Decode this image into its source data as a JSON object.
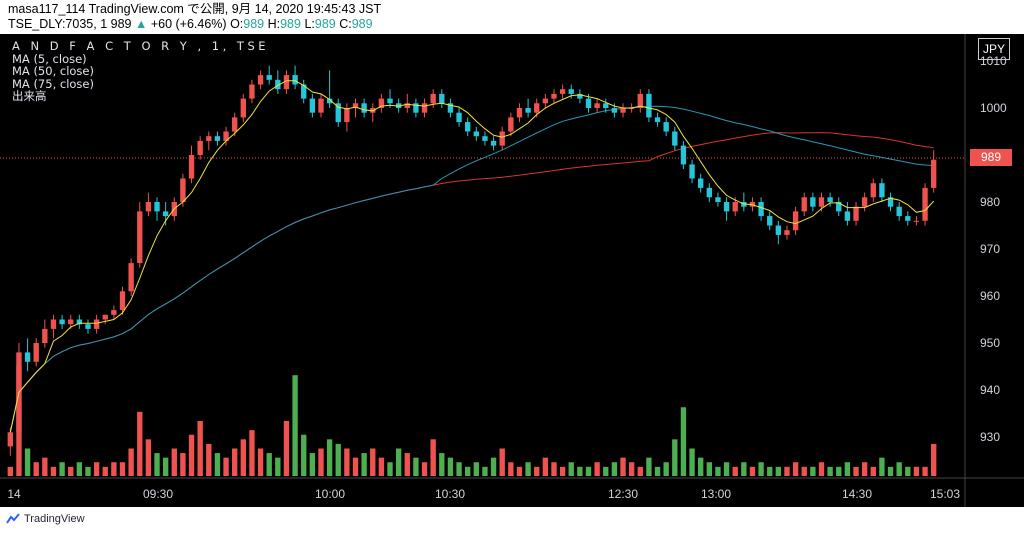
{
  "header": {
    "line1": "masa117_114 TradingView.com で公開, 9月 14, 2020 19:45:43 JST",
    "symbol": "TSE_DLY:7035, 1",
    "price": "989",
    "arrow": "▲",
    "change": "+60 (+6.46%)",
    "o_label": "O:",
    "o_value": "989",
    "h_label": "H:",
    "h_value": "989",
    "l_label": "L:",
    "l_value": "989",
    "c_label": "C:",
    "c_value": "989"
  },
  "legend": {
    "title": "A N D   F A C T O R Y , 1, TSE",
    "ma5": "MA (5, close)",
    "ma50": "MA (50, close)",
    "ma75": "MA (75, close)",
    "volume": "出来高"
  },
  "axis": {
    "unit": "JPY",
    "last_price_label": "989"
  },
  "footer": {
    "brand": "TradingView"
  },
  "colors": {
    "up": "#ef5350",
    "down": "#26c6da",
    "vol_up": "#ef5350",
    "vol_down": "#4caf50",
    "ma5": "#f2e33b",
    "ma50": "#2a97b8",
    "ma75": "#d9342b",
    "grid": "#1e1e1e",
    "axis_line": "#555"
  },
  "chart_data": {
    "type": "candlestick",
    "title": "A N D   F A C T O R Y , 1, TSE",
    "interval": "1 minute",
    "y_ticks": [
      930,
      940,
      950,
      960,
      970,
      980,
      990,
      1000,
      1010
    ],
    "ylim": [
      922,
      1012
    ],
    "x_ticks": [
      "14",
      "09:30",
      "10:00",
      "10:30",
      "12:30",
      "13:00",
      "14:30",
      "15:03"
    ],
    "grid": false,
    "last_price": 989,
    "price_ohlc": [
      [
        928,
        932,
        926,
        931
      ],
      [
        931,
        950,
        930,
        948
      ],
      [
        948,
        951,
        944,
        946
      ],
      [
        946,
        951,
        945,
        950
      ],
      [
        950,
        955,
        949,
        953
      ],
      [
        953,
        956,
        951,
        955
      ],
      [
        955,
        956,
        953,
        954
      ],
      [
        954,
        956,
        953,
        955
      ],
      [
        955,
        956,
        953,
        954
      ],
      [
        954,
        955,
        952,
        953
      ],
      [
        953,
        956,
        952,
        955
      ],
      [
        955,
        956,
        954,
        956
      ],
      [
        956,
        958,
        955,
        957
      ],
      [
        957,
        962,
        956,
        961
      ],
      [
        961,
        968,
        960,
        967
      ],
      [
        967,
        980,
        966,
        978
      ],
      [
        978,
        982,
        977,
        980
      ],
      [
        980,
        981,
        976,
        978
      ],
      [
        978,
        980,
        975,
        977
      ],
      [
        977,
        981,
        976,
        980
      ],
      [
        980,
        986,
        979,
        985
      ],
      [
        985,
        992,
        984,
        990
      ],
      [
        990,
        994,
        989,
        993
      ],
      [
        993,
        995,
        991,
        994
      ],
      [
        994,
        995,
        992,
        993
      ],
      [
        993,
        996,
        992,
        995
      ],
      [
        995,
        999,
        994,
        998
      ],
      [
        998,
        1003,
        997,
        1002
      ],
      [
        1002,
        1006,
        1001,
        1005
      ],
      [
        1005,
        1008,
        1004,
        1007
      ],
      [
        1007,
        1009,
        1005,
        1006
      ],
      [
        1006,
        1008,
        1003,
        1004
      ],
      [
        1004,
        1008,
        1003,
        1007
      ],
      [
        1007,
        1009,
        1004,
        1005
      ],
      [
        1005,
        1006,
        1001,
        1002
      ],
      [
        1002,
        1003,
        998,
        999
      ],
      [
        999,
        1003,
        998,
        1002
      ],
      [
        1002,
        1008,
        1000,
        1001
      ],
      [
        1001,
        1002,
        996,
        997
      ],
      [
        997,
        1001,
        995,
        1000
      ],
      [
        1000,
        1002,
        998,
        1001
      ],
      [
        1001,
        1002,
        998,
        999
      ],
      [
        999,
        1001,
        997,
        1000
      ],
      [
        1000,
        1003,
        999,
        1002
      ],
      [
        1002,
        1004,
        1000,
        1001
      ],
      [
        1001,
        1002,
        999,
        1000
      ],
      [
        1000,
        1003,
        999,
        1001
      ],
      [
        1001,
        1002,
        998,
        999
      ],
      [
        999,
        1002,
        998,
        1001
      ],
      [
        1001,
        1004,
        1000,
        1003
      ],
      [
        1003,
        1004,
        1000,
        1001
      ],
      [
        1001,
        1002,
        998,
        999
      ],
      [
        999,
        1000,
        996,
        997
      ],
      [
        997,
        998,
        994,
        995
      ],
      [
        995,
        996,
        993,
        994
      ],
      [
        994,
        995,
        992,
        993
      ],
      [
        993,
        994,
        991,
        992
      ],
      [
        992,
        996,
        991,
        995
      ],
      [
        995,
        999,
        994,
        998
      ],
      [
        998,
        1001,
        997,
        1000
      ],
      [
        1000,
        1002,
        998,
        999
      ],
      [
        999,
        1002,
        998,
        1001
      ],
      [
        1001,
        1003,
        1000,
        1002
      ],
      [
        1002,
        1004,
        1001,
        1003
      ],
      [
        1003,
        1005,
        1002,
        1004
      ],
      [
        1004,
        1005,
        1002,
        1003
      ],
      [
        1003,
        1004,
        1001,
        1002
      ],
      [
        1002,
        1003,
        999,
        1000
      ],
      [
        1000,
        1002,
        999,
        1001
      ],
      [
        1001,
        1002,
        999,
        1000
      ],
      [
        1000,
        1001,
        998,
        999
      ],
      [
        999,
        1001,
        998,
        1000
      ],
      [
        1000,
        1001,
        999,
        1000
      ],
      [
        1000,
        1004,
        999,
        1003
      ],
      [
        1003,
        1004,
        997,
        998
      ],
      [
        998,
        999,
        996,
        997
      ],
      [
        997,
        998,
        994,
        995
      ],
      [
        995,
        996,
        991,
        992
      ],
      [
        992,
        993,
        987,
        988
      ],
      [
        988,
        989,
        984,
        985
      ],
      [
        985,
        986,
        982,
        983
      ],
      [
        983,
        984,
        980,
        981
      ],
      [
        981,
        982,
        979,
        980
      ],
      [
        980,
        981,
        976,
        978
      ],
      [
        978,
        981,
        977,
        980
      ],
      [
        980,
        982,
        978,
        979
      ],
      [
        979,
        981,
        978,
        980
      ],
      [
        980,
        981,
        976,
        977
      ],
      [
        977,
        978,
        974,
        975
      ],
      [
        975,
        976,
        971,
        973
      ],
      [
        973,
        975,
        972,
        974
      ],
      [
        974,
        979,
        973,
        978
      ],
      [
        978,
        982,
        977,
        981
      ],
      [
        981,
        982,
        978,
        979
      ],
      [
        979,
        982,
        978,
        981
      ],
      [
        981,
        982,
        979,
        980
      ],
      [
        980,
        981,
        977,
        978
      ],
      [
        978,
        980,
        975,
        976
      ],
      [
        976,
        980,
        975,
        979
      ],
      [
        979,
        982,
        978,
        981
      ],
      [
        981,
        985,
        980,
        984
      ],
      [
        984,
        985,
        980,
        981
      ],
      [
        981,
        982,
        978,
        979
      ],
      [
        979,
        980,
        976,
        977
      ],
      [
        977,
        978,
        975,
        976
      ],
      [
        976,
        977,
        975,
        976
      ],
      [
        976,
        984,
        975,
        983
      ],
      [
        983,
        991,
        982,
        989
      ]
    ],
    "volume": [
      2,
      24,
      6,
      3,
      4,
      2,
      3,
      2,
      3,
      2,
      3,
      2,
      3,
      3,
      6,
      14,
      8,
      5,
      4,
      6,
      5,
      9,
      12,
      7,
      5,
      4,
      6,
      8,
      10,
      6,
      5,
      4,
      12,
      22,
      9,
      5,
      6,
      8,
      7,
      6,
      4,
      5,
      6,
      4,
      3,
      6,
      5,
      4,
      3,
      8,
      5,
      4,
      3,
      2,
      3,
      2,
      4,
      6,
      3,
      2,
      3,
      2,
      4,
      3,
      2,
      3,
      2,
      2,
      3,
      2,
      3,
      4,
      3,
      2,
      4,
      2,
      3,
      8,
      15,
      6,
      4,
      3,
      2,
      3,
      2,
      3,
      2,
      3,
      2,
      2,
      2,
      3,
      2,
      2,
      3,
      2,
      2,
      3,
      2,
      3,
      2,
      4,
      2,
      3,
      2,
      2,
      2,
      7,
      12
    ]
  }
}
